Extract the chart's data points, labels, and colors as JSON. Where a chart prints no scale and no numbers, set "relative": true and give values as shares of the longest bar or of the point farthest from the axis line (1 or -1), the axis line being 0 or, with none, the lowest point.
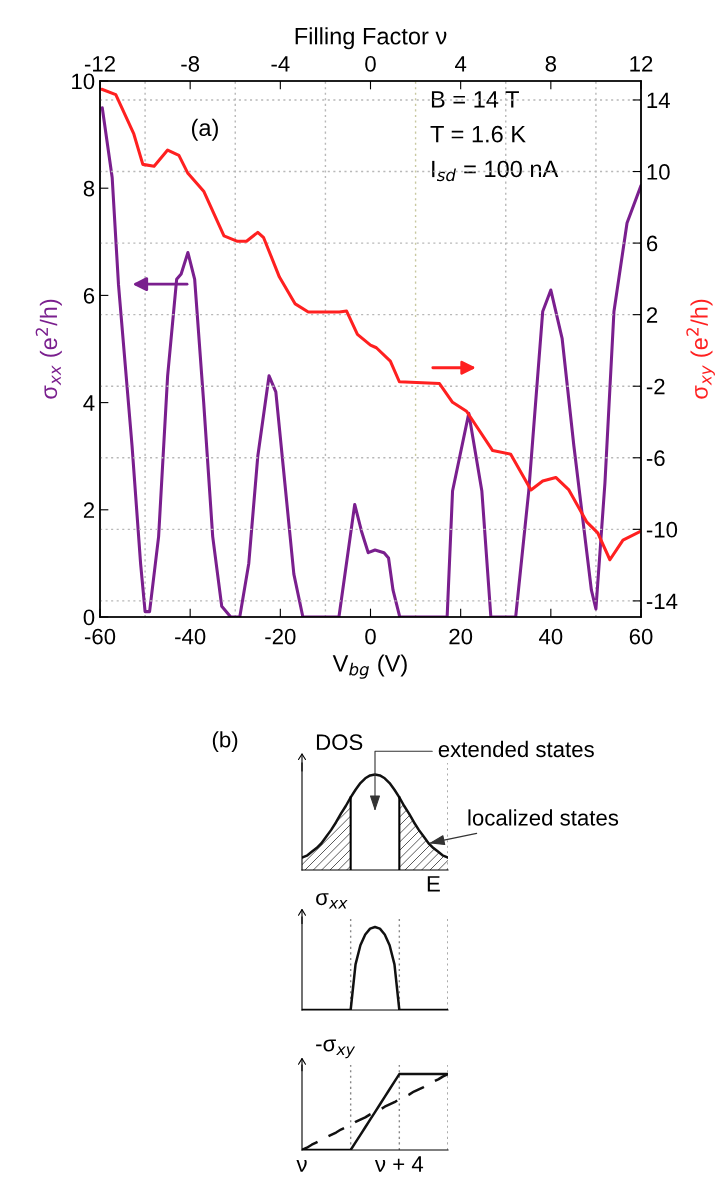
{
  "chart_data": [
    {
      "type": "line",
      "xlabel": "V$_{bg}$ (V)",
      "ylabel": "σ$_{xx}$ (e$^{2}$/h)",
      "y2label": "σ$_{xy}$ (e$^{2}$/h)",
      "x2label": "Filling Factor ν",
      "xlim": [
        -60,
        60
      ],
      "xticks": [
        -60,
        -40,
        -20,
        0,
        20,
        40,
        60
      ],
      "ylim": [
        0,
        10
      ],
      "yticks": [
        0,
        2,
        4,
        6,
        8,
        10
      ],
      "y2lim": [
        -14.9,
        15.06
      ],
      "y2ticks": [
        -14,
        -10,
        -6,
        -2,
        2,
        6,
        10,
        14
      ],
      "x2lim": [
        -12,
        12
      ],
      "x2ticks": [
        -12,
        -8,
        -4,
        0,
        4,
        8,
        12
      ],
      "annotations": [
        "(a)",
        "B = 14 T",
        "T = 1.6 K",
        "I$_{sd}$ = 100 nA"
      ],
      "ref_lines": [
        {
          "axis": "x",
          "value": -50,
          "color": "#b8b8b8",
          "line_style": "dotted"
        },
        {
          "axis": "x",
          "value": -30,
          "color": "#b8b8b8",
          "line_style": "dotted"
        },
        {
          "axis": "x",
          "value": -10,
          "color": "#b8b8b8",
          "line_style": "dotted"
        },
        {
          "axis": "x",
          "value": 10,
          "color": "#c8c8a0",
          "line_style": "dotted"
        },
        {
          "axis": "x",
          "value": 30,
          "color": "#b8b8b8",
          "line_style": "dotted"
        },
        {
          "axis": "x",
          "value": 50,
          "color": "#b8b8b8",
          "line_style": "dotted"
        },
        {
          "axis": "y2",
          "value": 14,
          "color": "#b8b8b8",
          "line_style": "dotted"
        },
        {
          "axis": "y2",
          "value": 10,
          "color": "#b8b8b8",
          "line_style": "dotted"
        },
        {
          "axis": "y2",
          "value": 6,
          "color": "#b8b8b8",
          "line_style": "dotted"
        },
        {
          "axis": "y2",
          "value": 2,
          "color": "#b8b8b8",
          "line_style": "dotted"
        },
        {
          "axis": "y2",
          "value": -2,
          "color": "#b8b8b8",
          "line_style": "dotted"
        },
        {
          "axis": "y2",
          "value": -6,
          "color": "#b8b8b8",
          "line_style": "dotted"
        },
        {
          "axis": "y2",
          "value": -10,
          "color": "#b8b8b8",
          "line_style": "dotted"
        },
        {
          "axis": "y2",
          "value": -14,
          "color": "#b8b8b8",
          "line_style": "dotted"
        }
      ],
      "series": [
        {
          "color": "#7a1f8e",
          "x": [
            -59.5,
            -57.3,
            -55.9,
            -52.9,
            -51,
            -50,
            -49,
            -47,
            -45,
            -43,
            -42,
            -40.5,
            -39,
            -37,
            -35,
            -33,
            -31,
            -29,
            -27,
            -25,
            -22.5,
            -21,
            -19,
            -17,
            -15,
            -7,
            -5,
            -3.5,
            -2,
            -0.5,
            1,
            3,
            4,
            5,
            6.5,
            17,
            18.2,
            21.8,
            24.7,
            26.7,
            32.2,
            35.1,
            38.2,
            40,
            42.5,
            45.1,
            49,
            50,
            52,
            54,
            56.9,
            60
          ],
          "values": [
            9.5,
            8.2,
            6.2,
            3.2,
            1,
            0.1,
            0.1,
            1.5,
            4.5,
            6.3,
            6.4,
            6.8,
            6.3,
            4,
            1.5,
            0.2,
            0,
            0,
            1,
            3,
            4.5,
            4.2,
            2.5,
            0.8,
            0,
            0,
            1.2,
            2.1,
            1.6,
            1.2,
            1.25,
            1.2,
            1.1,
            0.5,
            0,
            0,
            2.35,
            3.8,
            2.35,
            0,
            0,
            2.35,
            5.7,
            6.1,
            5.2,
            3.2,
            0.5,
            0.15,
            2.5,
            5.7,
            7.35,
            8.05
          ]
        },
        {
          "color": "#ff2020",
          "axis": "y2",
          "x": [
            -59.6,
            -56.5,
            -52.5,
            -50.5,
            -48,
            -45,
            -42.5,
            -40.5,
            -37,
            -32.5,
            -29.5,
            -27.5,
            -25,
            -23.7,
            -20.2,
            -16.7,
            -13.8,
            -6.9,
            -5.3,
            -2.9,
            0,
            1.3,
            4.4,
            6.4,
            15.3,
            18.2,
            21.3,
            27.1,
            31.1,
            35.6,
            38.2,
            41.1,
            44,
            48,
            50.4,
            53.1,
            56,
            60
          ],
          "values": [
            14.6,
            14.3,
            12.1,
            10.4,
            10.3,
            11.2,
            10.9,
            9.9,
            8.9,
            6.4,
            6.1,
            6.1,
            6.6,
            6.3,
            4.1,
            2.6,
            2.15,
            2.15,
            2.2,
            0.9,
            0.3,
            0.15,
            -0.6,
            -1.75,
            -1.85,
            -2.9,
            -3.4,
            -5.6,
            -5.8,
            -7.8,
            -7.3,
            -7.1,
            -7.8,
            -9.6,
            -10.2,
            -11.7,
            -10.6,
            -10.1
          ]
        }
      ]
    },
    {
      "type": "line",
      "relative": true,
      "ylabel": "DOS",
      "xlabel": "E",
      "annotations": [
        "(b)",
        "extended states",
        "localized states"
      ],
      "categories": [
        null,
        null,
        null,
        null,
        null,
        null,
        null,
        null,
        null,
        null,
        null,
        null,
        null,
        null,
        null,
        null,
        null,
        null,
        null,
        null,
        null,
        null,
        null,
        null,
        null,
        null,
        null,
        null,
        null,
        null,
        null
      ],
      "series": [
        {
          "color": "#111111",
          "values": [
            0.13,
            0.15,
            0.19,
            0.23,
            0.28,
            0.35,
            0.42,
            0.5,
            0.59,
            0.67,
            0.76,
            0.84,
            0.91,
            0.96,
            0.99,
            1,
            0.99,
            0.96,
            0.91,
            0.84,
            0.76,
            0.67,
            0.59,
            0.5,
            0.42,
            0.35,
            0.28,
            0.23,
            0.19,
            0.15,
            0.13
          ]
        }
      ]
    },
    {
      "type": "line",
      "relative": true,
      "ylabel": "σ$_{xx}$",
      "categories": [
        null,
        null,
        null,
        null,
        null,
        null,
        null,
        null,
        null,
        null,
        null,
        null,
        null,
        null,
        null,
        null,
        null,
        null,
        null,
        null,
        null,
        null,
        null,
        null,
        null,
        null,
        null,
        null,
        null,
        null,
        null
      ],
      "series": [
        {
          "color": "#111111",
          "values": [
            0,
            0,
            0,
            0,
            0,
            0,
            0,
            0,
            0,
            0,
            0,
            0.55,
            0.78,
            0.91,
            0.98,
            1,
            0.98,
            0.91,
            0.78,
            0.55,
            0,
            0,
            0,
            0,
            0,
            0,
            0,
            0,
            0,
            0,
            0
          ]
        }
      ]
    },
    {
      "type": "line",
      "relative": true,
      "ylabel": "-σ$_{xy}$",
      "categories": [
        "ν",
        null,
        null,
        null,
        null,
        null,
        null,
        null,
        null,
        null,
        null,
        null,
        null,
        null,
        null,
        null,
        null,
        null,
        null,
        null,
        "ν + 4",
        null,
        null,
        null,
        null,
        null,
        null,
        null,
        null,
        null,
        null
      ],
      "series": [
        {
          "color": "#111111",
          "values": [
            0,
            0,
            0,
            0,
            0,
            0,
            0,
            0,
            0,
            0,
            0,
            0.1,
            0.2,
            0.3,
            0.4,
            0.5,
            0.6,
            0.7,
            0.8,
            0.9,
            1,
            1,
            1,
            1,
            1,
            1,
            1,
            1,
            1,
            1,
            1
          ]
        },
        {
          "color": "#111111",
          "line_style": "dashed",
          "values": [
            0,
            0.03,
            0.07,
            0.1,
            0.13,
            0.17,
            0.2,
            0.23,
            0.27,
            0.3,
            0.33,
            0.37,
            0.4,
            0.43,
            0.47,
            0.5,
            0.53,
            0.57,
            0.6,
            0.63,
            0.67,
            0.7,
            0.73,
            0.77,
            0.8,
            0.83,
            0.87,
            0.9,
            0.93,
            0.97,
            1
          ]
        }
      ]
    }
  ]
}
